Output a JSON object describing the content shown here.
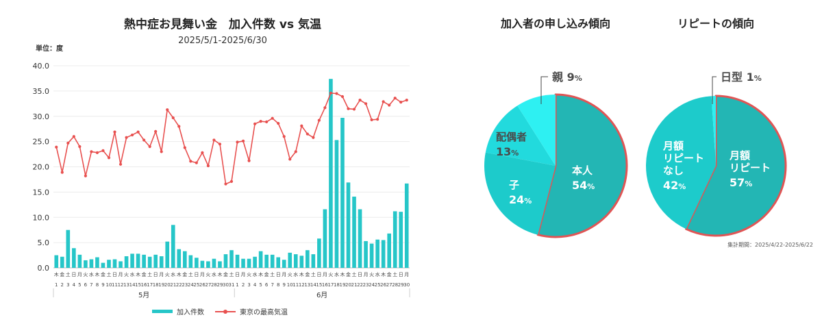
{
  "chart_data": [
    {
      "type": "bar+line",
      "title": "熱中症お見舞い金　加入件数 vs 気温",
      "subtitle": "2025/5/1-2025/6/30",
      "ylabel": "単位：度",
      "ylim": [
        0,
        40
      ],
      "yticks": [
        "0.0",
        "5.0",
        "10.0",
        "15.0",
        "20.0",
        "25.0",
        "30.0",
        "35.0",
        "40.0"
      ],
      "dates": [
        "1",
        "2",
        "3",
        "4",
        "5",
        "6",
        "7",
        "8",
        "9",
        "10",
        "11",
        "12",
        "13",
        "14",
        "15",
        "16",
        "17",
        "18",
        "19",
        "20",
        "21",
        "22",
        "23",
        "24",
        "25",
        "26",
        "27",
        "28",
        "29",
        "30",
        "31",
        "1",
        "2",
        "3",
        "4",
        "5",
        "6",
        "7",
        "8",
        "9",
        "10",
        "11",
        "12",
        "13",
        "14",
        "15",
        "16",
        "17",
        "18",
        "19",
        "20",
        "21",
        "22",
        "23",
        "24",
        "25",
        "26",
        "27",
        "28",
        "29",
        "30"
      ],
      "weekdays": [
        "木",
        "金",
        "土",
        "日",
        "月",
        "火",
        "水",
        "木",
        "金",
        "土",
        "日",
        "月",
        "火",
        "水",
        "木",
        "金",
        "土",
        "日",
        "月",
        "火",
        "水",
        "木",
        "金",
        "土",
        "日",
        "月",
        "火",
        "水",
        "木",
        "金",
        "土",
        "日",
        "月",
        "火",
        "水",
        "木",
        "金",
        "土",
        "日",
        "月",
        "火",
        "水",
        "木",
        "金",
        "土",
        "日",
        "月",
        "火",
        "水",
        "木",
        "金",
        "土",
        "日",
        "月",
        "火",
        "水",
        "木",
        "金",
        "土",
        "日",
        "月"
      ],
      "months": [
        {
          "label": "5月",
          "days": 31
        },
        {
          "label": "6月",
          "days": 30
        }
      ],
      "series": [
        {
          "name": "加入件数",
          "kind": "bar",
          "color": "#26c6c8",
          "values": [
            2.5,
            2.2,
            7.5,
            3.9,
            2.6,
            1.5,
            1.7,
            2.1,
            1.0,
            1.6,
            1.7,
            1.3,
            2.3,
            2.8,
            2.8,
            2.6,
            2.2,
            2.6,
            2.3,
            5.2,
            8.5,
            3.7,
            3.3,
            2.5,
            2.0,
            1.4,
            1.3,
            1.8,
            1.3,
            2.7,
            3.5,
            2.6,
            1.8,
            1.8,
            2.2,
            3.3,
            2.6,
            2.6,
            2.1,
            1.6,
            3.0,
            2.7,
            2.4,
            3.5,
            2.7,
            5.8,
            11.6,
            37.4,
            25.3,
            29.7,
            16.9,
            14.1,
            11.6,
            5.3,
            4.8,
            5.6,
            5.5,
            6.8,
            11.2,
            11.1,
            16.7
          ]
        },
        {
          "name": "東京の最高気温",
          "kind": "line",
          "color": "#e8504f",
          "values": [
            23.9,
            18.9,
            24.7,
            26.0,
            24.0,
            18.2,
            23.0,
            22.8,
            23.2,
            21.8,
            26.9,
            20.5,
            25.8,
            26.3,
            26.9,
            25.3,
            24.0,
            27.0,
            23.0,
            31.3,
            29.7,
            28.0,
            23.8,
            21.1,
            20.8,
            22.8,
            20.2,
            25.3,
            24.5,
            16.6,
            17.1,
            24.9,
            25.1,
            21.2,
            28.5,
            29.0,
            28.9,
            29.6,
            28.6,
            26.0,
            21.5,
            23.0,
            28.1,
            26.5,
            25.8,
            29.2,
            31.7,
            34.6,
            34.5,
            33.9,
            31.5,
            31.4,
            33.2,
            32.5,
            29.3,
            29.4,
            32.9,
            32.2,
            33.6,
            32.8,
            33.2
          ]
        }
      ]
    },
    {
      "type": "pie",
      "title": "加入者の申し込み傾向",
      "slices": [
        {
          "label": "本人",
          "value": 54,
          "text": "54",
          "color": "#23b6b4"
        },
        {
          "label": "子",
          "value": 24,
          "text": "24",
          "color": "#1dcbcb"
        },
        {
          "label": "配偶者",
          "value": 13,
          "text": "13",
          "color": "#22dadd"
        },
        {
          "label": "親",
          "value": 9,
          "text": "9",
          "color": "#2ef0f2"
        }
      ],
      "unit": "%"
    },
    {
      "type": "pie",
      "title": "リピートの傾向",
      "slices": [
        {
          "label": "月額リピート",
          "lines": [
            "月額",
            "リピート"
          ],
          "value": 57,
          "text": "57",
          "color": "#23b6b4"
        },
        {
          "label": "月額リピートなし",
          "lines": [
            "月額",
            "リピート",
            "なし"
          ],
          "value": 42,
          "text": "42",
          "color": "#1dcbcb"
        },
        {
          "label": "日型",
          "value": 1,
          "text": "1",
          "color": "#2ef0f2"
        }
      ],
      "unit": "%",
      "note": "集計期間：2025/4/22-2025/6/22"
    }
  ]
}
